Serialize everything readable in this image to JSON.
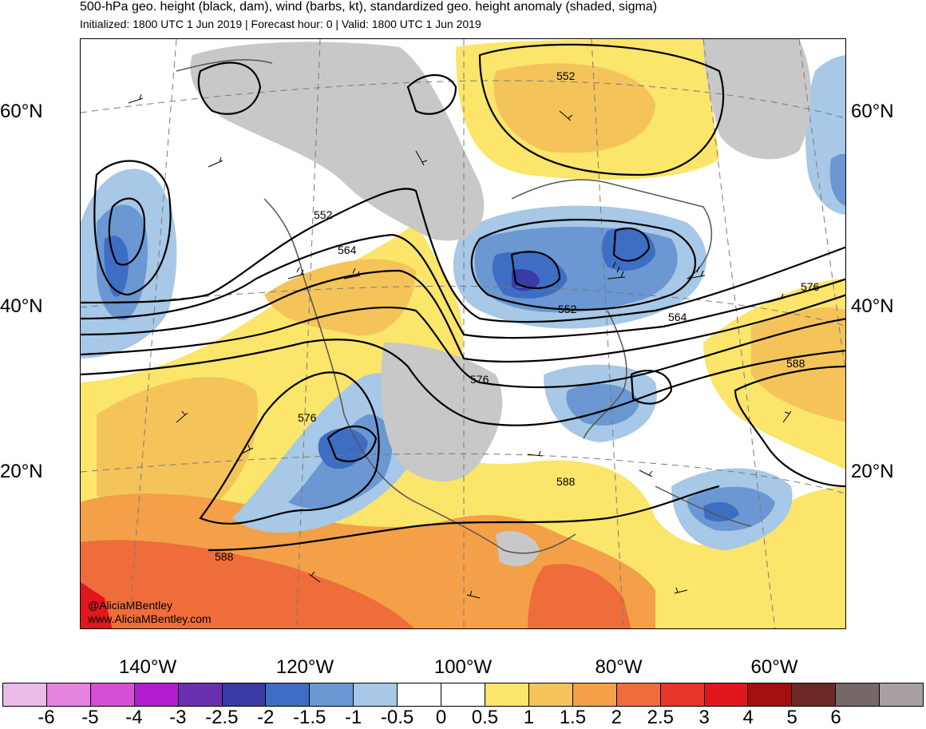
{
  "header": {
    "title": "500-hPa geo. height (black, dam), wind (barbs, kt), standardized geo. height anomaly (shaded, sigma)",
    "subtitle": "Initialized: 1800 UTC 1 Jun 2019 | Forecast hour: 0 | Valid: 1800 UTC 1 Jun 2019"
  },
  "map": {
    "lat_labels": [
      "60°N",
      "40°N",
      "20°N"
    ],
    "lon_labels": [
      "140°W",
      "120°W",
      "100°W",
      "80°W",
      "60°W"
    ],
    "contour_labels": [
      "552",
      "552",
      "564",
      "552",
      "564",
      "576",
      "576",
      "588",
      "588",
      "576",
      "588"
    ],
    "credit_handle": "@AliciaMBentley",
    "credit_site": "www.AliciaMBentley.com"
  },
  "colorbar": {
    "colors": [
      "#ebbce8",
      "#e583e0",
      "#d74fd6",
      "#b21ccf",
      "#6a2fb0",
      "#3a3ba6",
      "#3d6ec3",
      "#6b97d2",
      "#a7c8e6",
      "#ffffff",
      "#ffffff",
      "#fbe56a",
      "#f4c45b",
      "#f3a048",
      "#ee6d3a",
      "#e7352b",
      "#e2171b",
      "#a30f10",
      "#6b2a26",
      "#736767",
      "#a8a0a0"
    ],
    "ticks": [
      "-6",
      "-5",
      "-4",
      "-3",
      "-2.5",
      "-2",
      "-1.5",
      "-1",
      "-0.5",
      "0",
      "0.5",
      "1",
      "1.5",
      "2",
      "2.5",
      "3",
      "4",
      "5",
      "6"
    ]
  }
}
